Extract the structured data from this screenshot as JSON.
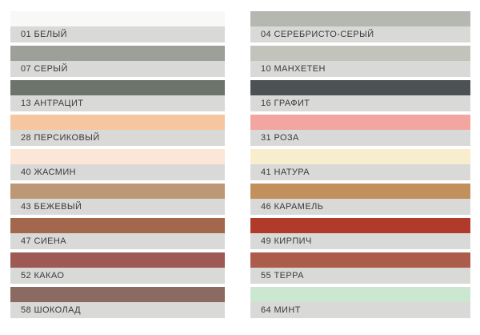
{
  "style": {
    "page_background": "#ffffff",
    "label_background": "#d9d9d8",
    "label_text_color": "#3a3a3a"
  },
  "chart_data": {
    "type": "table",
    "legend_position": "none",
    "description_visible_text_only": true,
    "columns": [
      {
        "side": "left",
        "swatches": [
          {
            "code": "01",
            "name": "БЕЛЫЙ",
            "label": "01 БЕЛЫЙ",
            "color": "#f8f8f6"
          },
          {
            "code": "07",
            "name": "СЕРЫЙ",
            "label": "07 СЕРЫЙ",
            "color": "#9da099"
          },
          {
            "code": "13",
            "name": "АНТРАЦИТ",
            "label": "13 АНТРАЦИТ",
            "color": "#6c746c"
          },
          {
            "code": "28",
            "name": "ПЕРСИКОВЫЙ",
            "label": "28 ПЕРСИКОВЫЙ",
            "color": "#f6c6a1"
          },
          {
            "code": "40",
            "name": "ЖАСМИН",
            "label": "40 ЖАСМИН",
            "color": "#fce6d7"
          },
          {
            "code": "43",
            "name": "БЕЖЕВЫЙ",
            "label": "43 БЕЖЕВЫЙ",
            "color": "#bd9876"
          },
          {
            "code": "47",
            "name": "СИЕНА",
            "label": "47 СИЕНА",
            "color": "#a3674e"
          },
          {
            "code": "52",
            "name": "КАКАО",
            "label": "52 КАКАО",
            "color": "#9d5953"
          },
          {
            "code": "58",
            "name": "ШОКОЛАД",
            "label": "58 ШОКОЛАД",
            "color": "#8b6a61"
          }
        ]
      },
      {
        "side": "right",
        "swatches": [
          {
            "code": "04",
            "name": "СЕРЕБРИСТО-СЕРЫЙ",
            "label": "04 СЕРЕБРИСТО-СЕРЫЙ",
            "color": "#b5b7b1"
          },
          {
            "code": "10",
            "name": "МАНХЕТЕН",
            "label": "10 МАНХЕТЕН",
            "color": "#c2c3ba"
          },
          {
            "code": "16",
            "name": "ГРАФИТ",
            "label": "16 ГРАФИТ",
            "color": "#4c5253"
          },
          {
            "code": "31",
            "name": "РОЗА",
            "label": "31 РОЗА",
            "color": "#f3a59f"
          },
          {
            "code": "41",
            "name": "НАТУРА",
            "label": "41 НАТУРА",
            "color": "#f8edcc"
          },
          {
            "code": "46",
            "name": "КАРАМЕЛЬ",
            "label": "46 КАРАМЕЛЬ",
            "color": "#c2905c"
          },
          {
            "code": "49",
            "name": "КИРПИЧ",
            "label": "49 КИРПИЧ",
            "color": "#b13b2a"
          },
          {
            "code": "55",
            "name": "ТЕРРА",
            "label": "55 ТЕРРА",
            "color": "#ac5c4b"
          },
          {
            "code": "64",
            "name": "МИНТ",
            "label": "64 МИНТ",
            "color": "#cce7d0"
          }
        ]
      }
    ]
  }
}
